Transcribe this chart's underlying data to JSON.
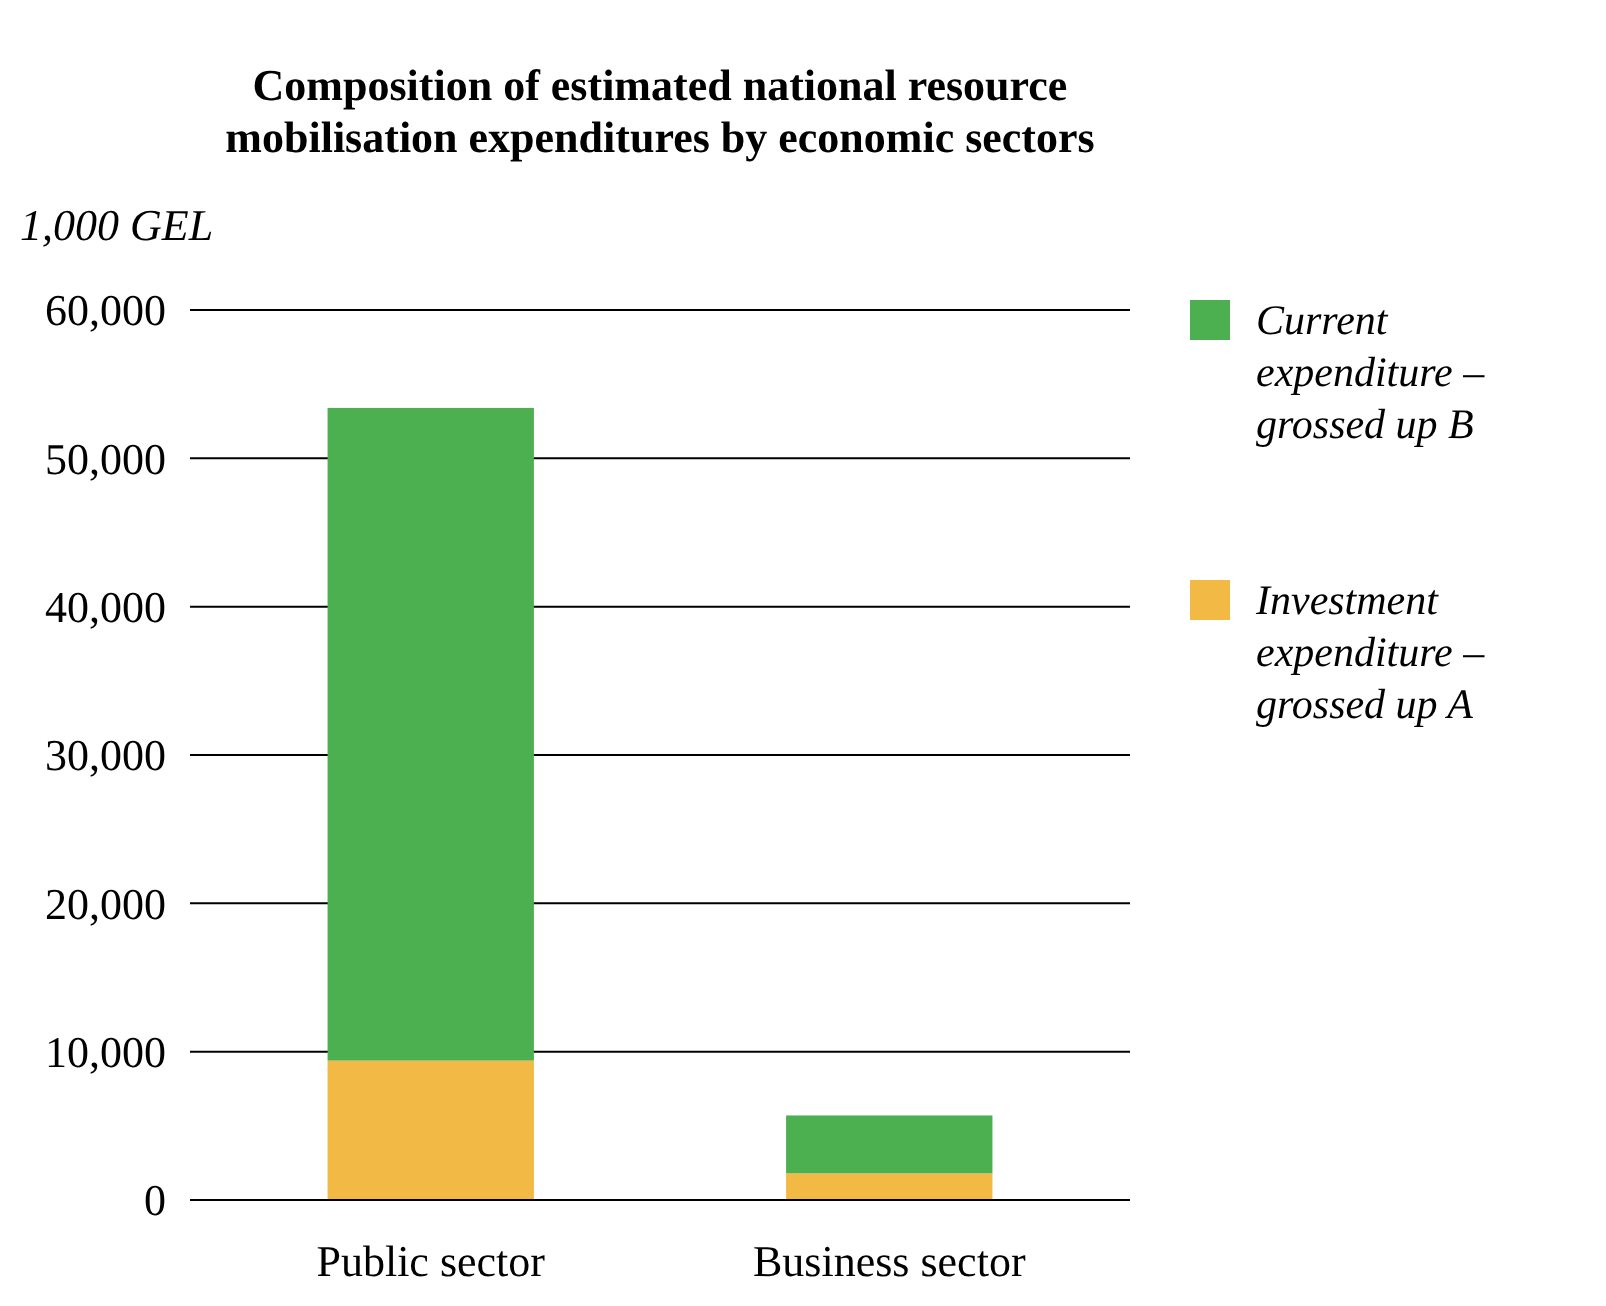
{
  "chart_data": {
    "type": "bar",
    "title": "Composition of estimated national resource mobilisation expenditures by economic sectors",
    "ylabel": "1,000 GEL",
    "categories": [
      "Public sector",
      "Business sector"
    ],
    "series": [
      {
        "name": "Investment expenditure – grossed up A",
        "color": "#f2b944",
        "values": [
          9400,
          1800
        ]
      },
      {
        "name": "Current expenditure – grossed up B",
        "color": "#4caf50",
        "values": [
          44000,
          3900
        ]
      }
    ],
    "stacked": true,
    "ylim": [
      0,
      60000
    ],
    "yticks": [
      {
        "value": 0,
        "label": "0"
      },
      {
        "value": 10000,
        "label": "10,000"
      },
      {
        "value": 20000,
        "label": "20,000"
      },
      {
        "value": 30000,
        "label": "30,000"
      },
      {
        "value": 40000,
        "label": "40,000"
      },
      {
        "value": 50000,
        "label": "50,000"
      },
      {
        "value": 60000,
        "label": "60,000"
      }
    ],
    "grid": "y",
    "legend": "right"
  }
}
